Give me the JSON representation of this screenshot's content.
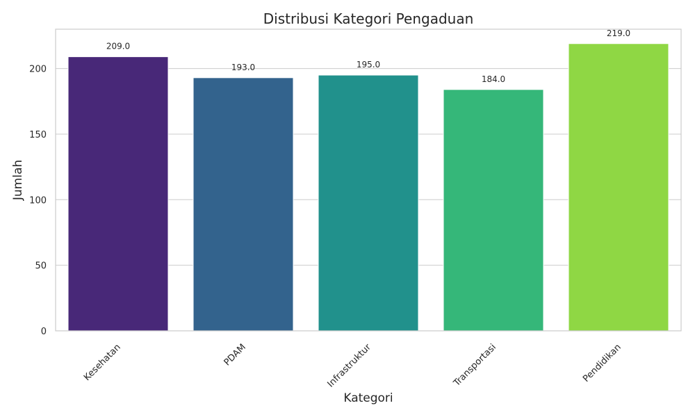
{
  "chart_data": {
    "type": "bar",
    "title": "Distribusi Kategori Pengaduan",
    "xlabel": "Kategori",
    "ylabel": "Jumlah",
    "categories": [
      "Kesehatan",
      "PDAM",
      "Infrastruktur",
      "Transportasi",
      "Pendidikan"
    ],
    "values": [
      209,
      193,
      195,
      184,
      219
    ],
    "value_labels": [
      "209.0",
      "193.0",
      "195.0",
      "184.0",
      "219.0"
    ],
    "colors": [
      "#482878",
      "#33638d",
      "#21918c",
      "#35b779",
      "#8fd744"
    ],
    "ylim": [
      0,
      230
    ],
    "yticks": [
      0,
      50,
      100,
      150,
      200
    ],
    "grid": "horizontal",
    "xtick_rotation": "45 degrees"
  }
}
